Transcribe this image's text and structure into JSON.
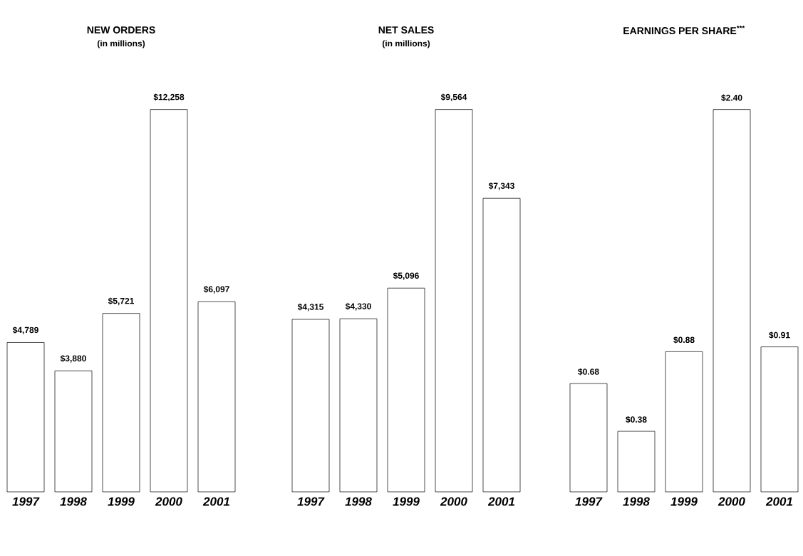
{
  "chart_data": [
    {
      "type": "bar",
      "title": "NEW ORDERS",
      "subtitle": "(in millions)",
      "categories": [
        "1997",
        "1998",
        "1999",
        "2000",
        "2001"
      ],
      "values": [
        4789,
        3880,
        5721,
        12258,
        6097
      ],
      "value_labels": [
        "$4,789",
        "$3,880",
        "$5,721",
        "$12,258",
        "$6,097"
      ],
      "color": "#ffffff"
    },
    {
      "type": "bar",
      "title": "NET SALES",
      "subtitle": "(in millions)",
      "categories": [
        "1997",
        "1998",
        "1999",
        "2000",
        "2001"
      ],
      "values": [
        4315,
        4330,
        5096,
        9564,
        7343
      ],
      "value_labels": [
        "$4,315",
        "$4,330",
        "$5,096",
        "$9,564",
        "$7,343"
      ],
      "color": "#ffffff"
    },
    {
      "type": "bar",
      "title": "EARNINGS PER SHARE$^{***}$",
      "categories": [
        "1997",
        "1998",
        "1999",
        "2000",
        "2001"
      ],
      "values": [
        0.68,
        0.38,
        0.88,
        2.4,
        0.91
      ],
      "value_labels": [
        "$0.68",
        "$0.38",
        "$0.88",
        "$2.40",
        "$0.91"
      ],
      "color": "#ffffff"
    }
  ]
}
